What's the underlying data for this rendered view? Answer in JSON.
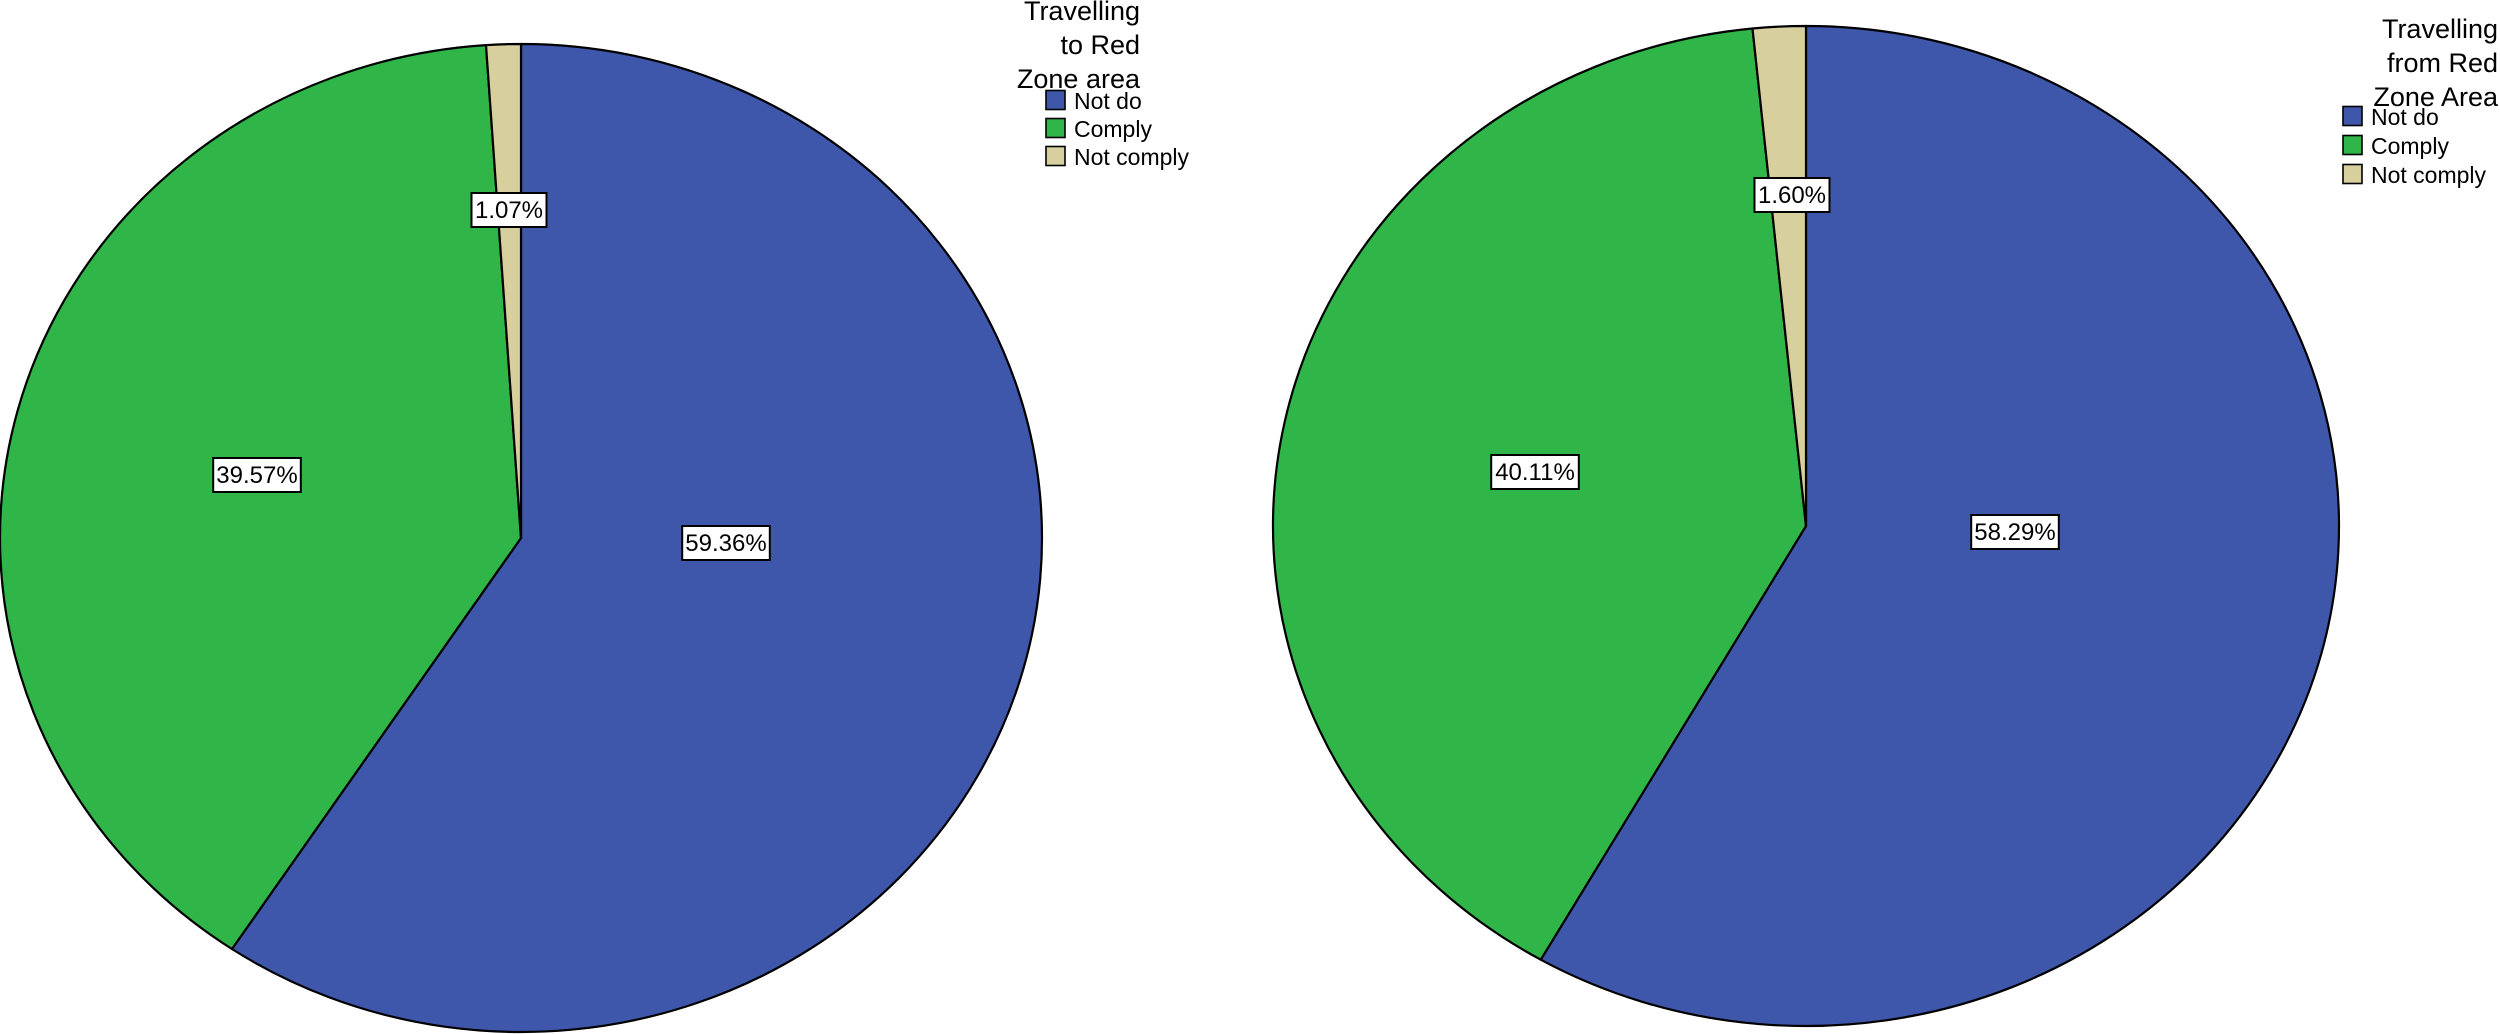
{
  "chart_data": [
    {
      "type": "pie",
      "title": "Travelling to Red Zone area",
      "title_lines": [
        "Travelling",
        "to Red",
        "Zone area"
      ],
      "slices": [
        {
          "label": "Not do",
          "value": 59.36,
          "display": "59.36%",
          "color": "#3e57aa"
        },
        {
          "label": "Comply",
          "value": 39.57,
          "display": "39.57%",
          "color": "#2fb548"
        },
        {
          "label": "Not comply",
          "value": 1.07,
          "display": "1.07%",
          "color": "#d7cf9e"
        }
      ],
      "legend_position": "top-right"
    },
    {
      "type": "pie",
      "title": "Travelling from Red Zone Area",
      "title_lines": [
        "Travelling",
        "from Red",
        "Zone Area"
      ],
      "slices": [
        {
          "label": "Not do",
          "value": 58.29,
          "display": "58.29%",
          "color": "#3e57aa"
        },
        {
          "label": "Comply",
          "value": 40.11,
          "display": "40.11%",
          "color": "#2fb548"
        },
        {
          "label": "Not comply",
          "value": 1.6,
          "display": "1.60%",
          "color": "#d7cf9e"
        }
      ],
      "legend_position": "top-right"
    }
  ]
}
